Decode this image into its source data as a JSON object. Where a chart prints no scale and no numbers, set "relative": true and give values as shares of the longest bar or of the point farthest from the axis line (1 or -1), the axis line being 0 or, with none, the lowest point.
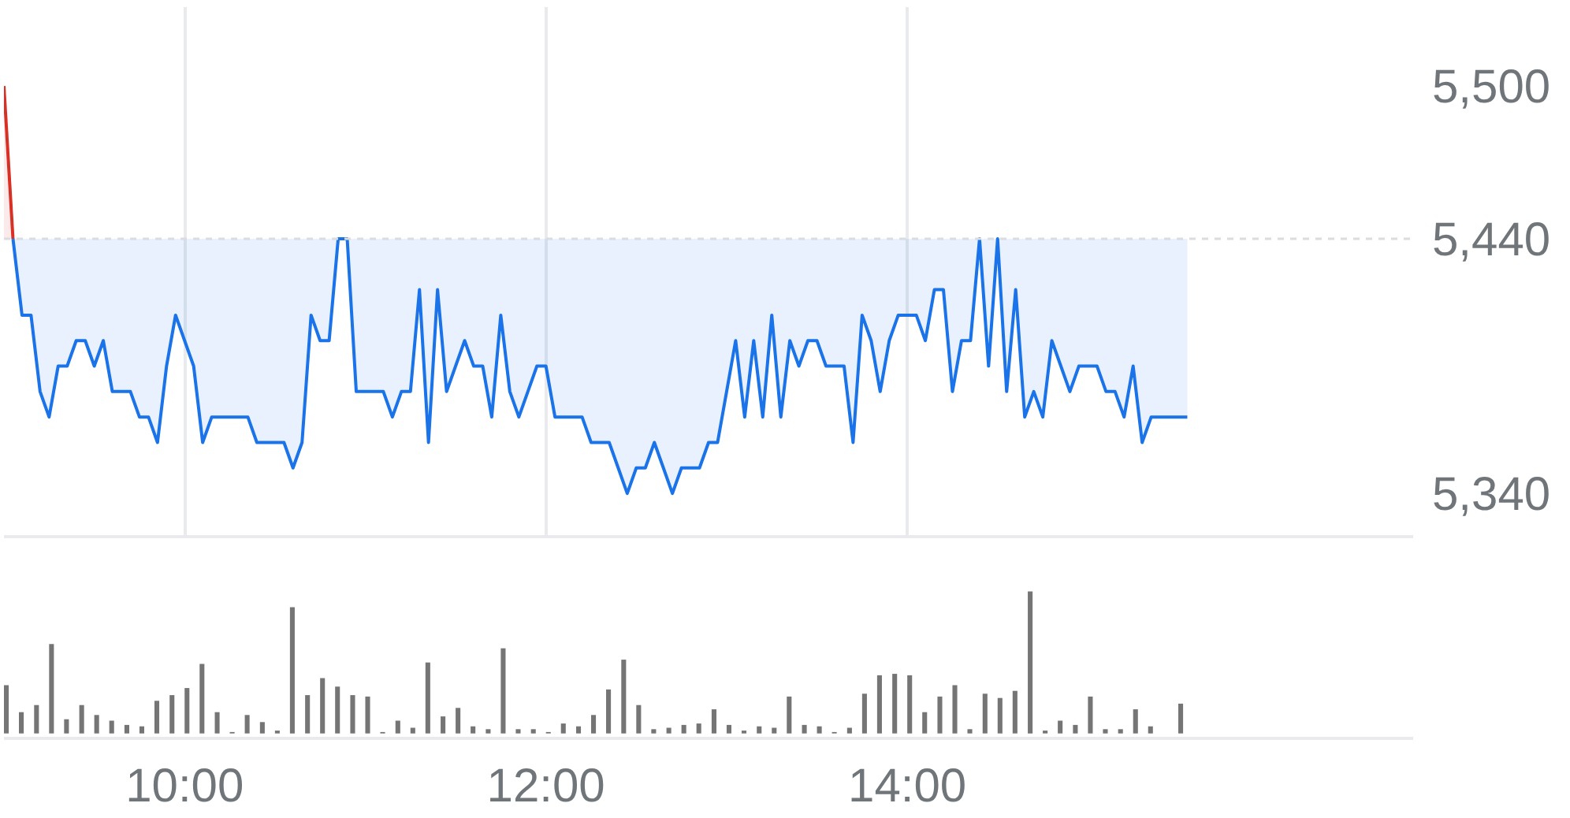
{
  "chart_data": [
    {
      "type": "area",
      "xlim": [
        9,
        16.8
      ],
      "ylim": [
        5323,
        5531
      ],
      "xticks": [
        {
          "value": 10,
          "label": null
        },
        {
          "value": 12,
          "label": null
        },
        {
          "value": 14,
          "label": null
        }
      ],
      "yticks": [
        {
          "value": 5340,
          "label": "5,340"
        },
        {
          "value": 5440,
          "label": "5,440"
        },
        {
          "value": 5500,
          "label": "5,500"
        }
      ],
      "grid": "x",
      "tick_labels": "y",
      "ref_lines": [
        {
          "axis": "y",
          "value": 5440,
          "color": "#dadce0",
          "line_style": "dashed"
        }
      ],
      "series": [
        {
          "color": "#d93025",
          "x": [
            9,
            9.05
          ],
          "values": [
            5500,
            5440
          ]
        },
        {
          "type": "line",
          "color": "#1a73e8",
          "x": [
            9.05,
            9.1,
            9.15,
            9.2,
            9.25,
            9.3,
            9.35,
            9.4,
            9.45,
            9.5,
            9.55,
            9.6,
            9.65,
            9.7,
            9.75,
            9.8,
            9.85,
            9.9,
            9.95,
            10,
            10.05,
            10.1,
            10.15,
            10.2,
            10.25,
            10.3,
            10.35,
            10.4,
            10.45,
            10.5,
            10.55,
            10.6,
            10.65,
            10.7,
            10.75,
            10.8,
            10.85,
            10.9,
            10.95,
            11,
            11.05,
            11.1,
            11.15,
            11.2,
            11.25,
            11.3,
            11.35,
            11.4,
            11.45,
            11.5,
            11.55,
            11.6,
            11.65,
            11.7,
            11.75,
            11.8,
            11.85,
            11.9,
            11.95,
            12,
            12.05,
            12.1,
            12.15,
            12.2,
            12.25,
            12.3,
            12.35,
            12.4,
            12.45,
            12.5,
            12.55,
            12.6,
            12.65,
            12.7,
            12.75,
            12.8,
            12.85,
            12.9,
            12.95,
            13,
            13.05,
            13.1,
            13.15,
            13.2,
            13.25,
            13.3,
            13.35,
            13.4,
            13.45,
            13.5,
            13.55,
            13.6,
            13.65,
            13.7,
            13.75,
            13.8,
            13.85,
            13.9,
            13.95,
            14,
            14.05,
            14.1,
            14.15,
            14.2,
            14.25,
            14.3,
            14.35,
            14.4,
            14.45,
            14.5,
            14.55,
            14.6,
            14.65,
            14.7,
            14.75,
            14.8,
            14.85,
            14.9,
            14.95,
            15,
            15.05,
            15.1,
            15.15,
            15.2,
            15.25,
            15.3,
            15.35,
            15.4,
            15.45,
            15.5,
            15.55
          ],
          "values": [
            5440,
            5410,
            5410,
            5380,
            5370,
            5390,
            5390,
            5400,
            5400,
            5390,
            5400,
            5380,
            5380,
            5380,
            5370,
            5370,
            5360,
            5390,
            5410,
            5400,
            5390,
            5360,
            5370,
            5370,
            5370,
            5370,
            5370,
            5360,
            5360,
            5360,
            5360,
            5350,
            5360,
            5410,
            5400,
            5400,
            5440,
            5440,
            5380,
            5380,
            5380,
            5380,
            5370,
            5380,
            5380,
            5420,
            5360,
            5420,
            5380,
            5390,
            5400,
            5390,
            5390,
            5370,
            5410,
            5380,
            5370,
            5380,
            5390,
            5390,
            5370,
            5370,
            5370,
            5370,
            5360,
            5360,
            5360,
            5350,
            5340,
            5350,
            5350,
            5360,
            5350,
            5340,
            5350,
            5350,
            5350,
            5360,
            5360,
            5380,
            5400,
            5370,
            5400,
            5370,
            5410,
            5370,
            5400,
            5390,
            5400,
            5400,
            5390,
            5390,
            5390,
            5360,
            5410,
            5400,
            5380,
            5400,
            5410,
            5410,
            5410,
            5400,
            5420,
            5420,
            5380,
            5400,
            5400,
            5440,
            5390,
            5440,
            5380,
            5420,
            5370,
            5380,
            5370,
            5400,
            5390,
            5380,
            5390,
            5390,
            5390,
            5380,
            5380,
            5370,
            5390,
            5360,
            5370,
            5370,
            5370,
            5370,
            5370
          ],
          "lower": [
            5440,
            5410,
            5410,
            5380,
            5370,
            5390,
            5390,
            5400,
            5400,
            5390,
            5400,
            5380,
            5380,
            5380,
            5370,
            5370,
            5360,
            5390,
            5410,
            5400,
            5390,
            5360,
            5370,
            5370,
            5370,
            5370,
            5370,
            5360,
            5360,
            5360,
            5360,
            5350,
            5360,
            5410,
            5400,
            5400,
            5440,
            5440,
            5380,
            5380,
            5380,
            5380,
            5370,
            5380,
            5380,
            5420,
            5360,
            5420,
            5380,
            5390,
            5400,
            5390,
            5390,
            5370,
            5410,
            5380,
            5370,
            5380,
            5390,
            5390,
            5370,
            5370,
            5370,
            5370,
            5360,
            5360,
            5360,
            5350,
            5340,
            5350,
            5350,
            5360,
            5350,
            5340,
            5350,
            5350,
            5350,
            5360,
            5360,
            5380,
            5400,
            5370,
            5400,
            5370,
            5410,
            5370,
            5400,
            5390,
            5400,
            5400,
            5390,
            5390,
            5390,
            5360,
            5410,
            5400,
            5380,
            5400,
            5410,
            5410,
            5410,
            5400,
            5420,
            5420,
            5380,
            5400,
            5400,
            5440,
            5390,
            5440,
            5380,
            5420,
            5370,
            5380,
            5370,
            5400,
            5390,
            5380,
            5390,
            5390,
            5390,
            5380,
            5380,
            5370,
            5390,
            5360,
            5370,
            5370,
            5370,
            5370,
            5370
          ],
          "upper": [
            5440,
            5440,
            5440,
            5440,
            5440,
            5440,
            5440,
            5440,
            5440,
            5440,
            5440,
            5440,
            5440,
            5440,
            5440,
            5440,
            5440,
            5440,
            5440,
            5440,
            5440,
            5440,
            5440,
            5440,
            5440,
            5440,
            5440,
            5440,
            5440,
            5440,
            5440,
            5440,
            5440,
            5440,
            5440,
            5440,
            5440,
            5440,
            5440,
            5440,
            5440,
            5440,
            5440,
            5440,
            5440,
            5440,
            5440,
            5440,
            5440,
            5440,
            5440,
            5440,
            5440,
            5440,
            5440,
            5440,
            5440,
            5440,
            5440,
            5440,
            5440,
            5440,
            5440,
            5440,
            5440,
            5440,
            5440,
            5440,
            5440,
            5440,
            5440,
            5440,
            5440,
            5440,
            5440,
            5440,
            5440,
            5440,
            5440,
            5440,
            5440,
            5440,
            5440,
            5440,
            5440,
            5440,
            5440,
            5440,
            5440,
            5440,
            5440,
            5440,
            5440,
            5440,
            5440,
            5440,
            5440,
            5440,
            5440,
            5440,
            5440,
            5440,
            5440,
            5440,
            5440,
            5440,
            5440,
            5440,
            5440,
            5440,
            5440,
            5440,
            5440,
            5440,
            5440,
            5440,
            5440,
            5440,
            5440,
            5440,
            5440,
            5440,
            5440,
            5440,
            5440,
            5440,
            5440,
            5440,
            5440,
            5440,
            5440
          ]
        }
      ]
    },
    {
      "type": "bar",
      "relative": true,
      "color": "#757575",
      "xlim": [
        9,
        16.8
      ],
      "xticks": [
        {
          "value": 10,
          "label": "10:00"
        },
        {
          "value": 12,
          "label": "12:00"
        },
        {
          "value": 14,
          "label": "14:00"
        }
      ],
      "tick_labels": "x",
      "x": [
        9,
        9.083,
        9.167,
        9.25,
        9.333,
        9.417,
        9.5,
        9.583,
        9.667,
        9.75,
        9.833,
        9.917,
        10,
        10.083,
        10.167,
        10.25,
        10.333,
        10.417,
        10.5,
        10.583,
        10.667,
        10.75,
        10.833,
        10.917,
        11,
        11.083,
        11.167,
        11.25,
        11.333,
        11.417,
        11.5,
        11.583,
        11.667,
        11.75,
        11.833,
        11.917,
        12,
        12.083,
        12.167,
        12.25,
        12.333,
        12.417,
        12.5,
        12.583,
        12.667,
        12.75,
        12.833,
        12.917,
        13,
        13.083,
        13.167,
        13.25,
        13.333,
        13.417,
        13.5,
        13.583,
        13.667,
        13.75,
        13.833,
        13.917,
        14,
        14.083,
        14.167,
        14.25,
        14.333,
        14.417,
        14.5,
        14.583,
        14.667,
        14.75,
        14.833,
        14.917,
        15,
        15.083,
        15.167,
        15.25,
        15.333,
        15.417,
        15.5
      ],
      "values": [
        0.34,
        0.15,
        0.2,
        0.63,
        0.1,
        0.2,
        0.13,
        0.09,
        0.06,
        0.05,
        0.23,
        0.27,
        0.32,
        0.49,
        0.15,
        0.01,
        0.13,
        0.08,
        0.02,
        0.89,
        0.27,
        0.39,
        0.33,
        0.27,
        0.26,
        0.01,
        0.09,
        0.04,
        0.5,
        0.12,
        0.18,
        0.05,
        0.03,
        0.6,
        0.03,
        0.03,
        0.01,
        0.07,
        0.05,
        0.13,
        0.31,
        0.52,
        0.2,
        0.03,
        0.04,
        0.06,
        0.07,
        0.17,
        0.06,
        0.02,
        0.05,
        0.04,
        0.26,
        0.06,
        0.05,
        0.01,
        0.04,
        0.28,
        0.41,
        0.42,
        0.41,
        0.15,
        0.26,
        0.34,
        0.03,
        0.28,
        0.25,
        0.3,
        1,
        0.02,
        0.09,
        0.06,
        0.26,
        0.03,
        0.03,
        0.17,
        0.05,
        null,
        0.21
      ]
    }
  ]
}
